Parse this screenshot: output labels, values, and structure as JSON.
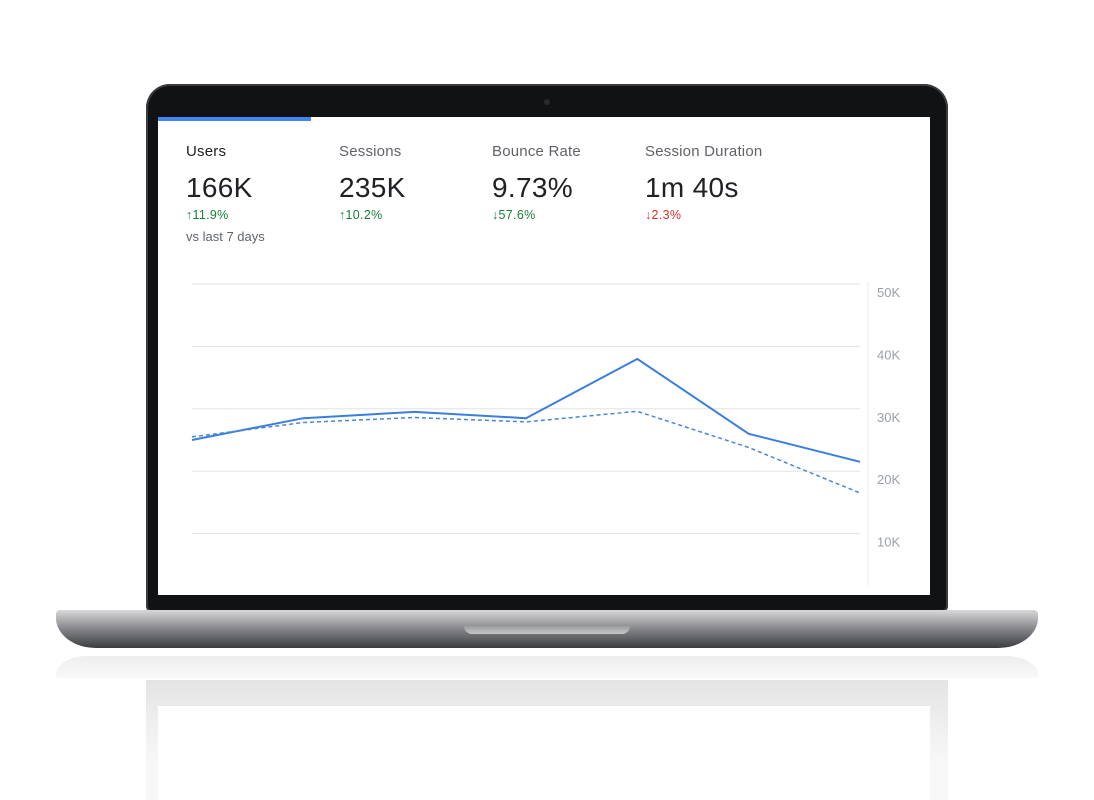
{
  "tabs": [
    {
      "label": "Users",
      "value": "166K",
      "delta": "↑11.9%",
      "delta_kind": "up-good"
    },
    {
      "label": "Sessions",
      "value": "235K",
      "delta": "↑10.2%",
      "delta_kind": "up-good"
    },
    {
      "label": "Bounce Rate",
      "value": "9.73%",
      "delta": "↓57.6%",
      "delta_kind": "down-good"
    },
    {
      "label": "Session Duration",
      "value": "1m 40s",
      "delta": "↓2.3%",
      "delta_kind": "down-bad"
    }
  ],
  "compare_note": "vs last 7 days",
  "colors": {
    "accent": "#4285f4",
    "line_current": "#3b7fdc",
    "line_previous": "#4a86d8",
    "positive": "#188038",
    "negative": "#d93025",
    "gridline": "#e3e3e3",
    "tick_text": "#9aa0a6"
  },
  "chart_data": {
    "type": "line",
    "y_ticks": [
      "50K",
      "40K",
      "30K",
      "20K",
      "10K"
    ],
    "ylim": [
      0,
      50000
    ],
    "grid": true,
    "series": [
      {
        "style": "solid",
        "values": [
          25000,
          28500,
          29500,
          28500,
          38000,
          26000,
          21500
        ]
      },
      {
        "style": "dashed",
        "values": [
          25500,
          27800,
          28600,
          27900,
          29600,
          23800,
          16500
        ]
      }
    ]
  }
}
